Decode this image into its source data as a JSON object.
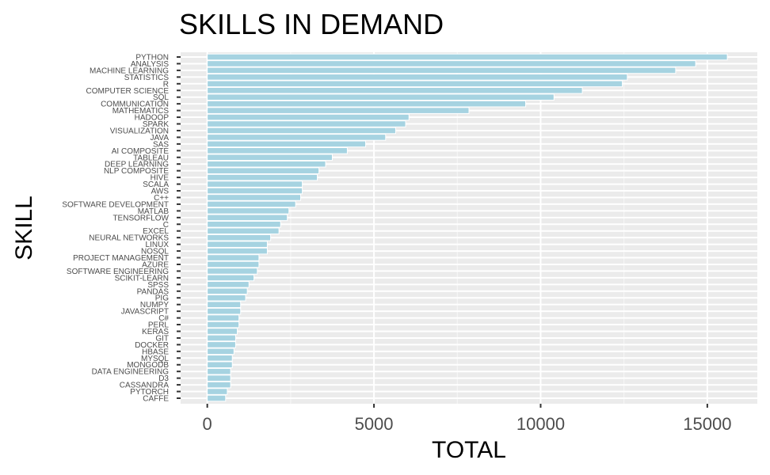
{
  "chart_data": {
    "type": "bar",
    "orientation": "horizontal",
    "title": "SKILLS IN DEMAND",
    "xlabel": "TOTAL",
    "ylabel": "SKILL",
    "xlim": [
      -800,
      16500
    ],
    "x_ticks": [
      0,
      5000,
      10000,
      15000
    ],
    "x_tick_labels": [
      "0",
      "5000",
      "10000",
      "15000"
    ],
    "grid": true,
    "legend": "none",
    "bar_color": "#a6d3e1",
    "background_color": "#ebebeb",
    "categories": [
      "PYTHON",
      "ANALYSIS",
      "MACHINE LEARNING",
      "STATISTICS",
      "R",
      "COMPUTER SCIENCE",
      "SQL",
      "COMMUNICATION",
      "MATHEMATICS",
      "HADOOP",
      "SPARK",
      "VISUALIZATION",
      "JAVA",
      "SAS",
      "AI COMPOSITE",
      "TABLEAU",
      "DEEP LEARNING",
      "NLP COMPOSITE",
      "HIVE",
      "SCALA",
      "AWS",
      "C++",
      "SOFTWARE DEVELOPMENT",
      "MATLAB",
      "TENSORFLOW",
      "C",
      "EXCEL",
      "NEURAL NETWORKS",
      "LINUX",
      "NOSQL",
      "PROJECT MANAGEMENT",
      "AZURE",
      "SOFTWARE ENGINEERING",
      "SCIKIT-LEARN",
      "SPSS",
      "PANDAS",
      "PIG",
      "NUMPY",
      "JAVASCRIPT",
      "C#",
      "PERL",
      "KERAS",
      "GIT",
      "DOCKER",
      "HBASE",
      "MYSQL",
      "MONGODB",
      "DATA ENGINEERING",
      "D3",
      "CASSANDRA",
      "PYTORCH",
      "CAFFE"
    ],
    "values": [
      15600,
      14650,
      14050,
      12600,
      12450,
      11250,
      10400,
      9550,
      7850,
      6050,
      5950,
      5650,
      5350,
      4750,
      4200,
      3750,
      3550,
      3350,
      3300,
      2850,
      2850,
      2800,
      2650,
      2450,
      2400,
      2200,
      2150,
      1900,
      1800,
      1800,
      1550,
      1550,
      1500,
      1400,
      1250,
      1200,
      1150,
      1000,
      1000,
      950,
      950,
      900,
      850,
      850,
      800,
      750,
      750,
      700,
      700,
      700,
      600,
      550
    ]
  }
}
